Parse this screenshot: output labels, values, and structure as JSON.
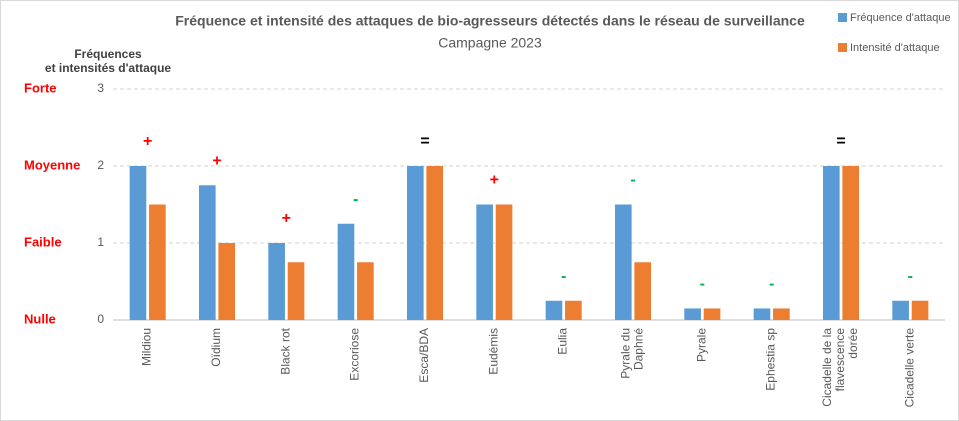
{
  "chart_data": {
    "type": "bar",
    "title": "Fréquence et intensité des attaques de bio-agresseurs détectés dans le réseau de surveillance",
    "subtitle": "Campagne 2023",
    "y_axis_label": [
      "Fréquences",
      "et intensités d'attaque"
    ],
    "level_labels": [
      "Nulle",
      "Faible",
      "Moyenne",
      "Forte"
    ],
    "level_label_color": "#ff0000",
    "categories": [
      [
        "Mildiou"
      ],
      [
        "Oïdium"
      ],
      [
        "Black rot"
      ],
      [
        "Excoriose"
      ],
      [
        "Esca/BDA"
      ],
      [
        "Eudémis"
      ],
      [
        "Eulia"
      ],
      [
        "Pyrale du",
        "Daphné"
      ],
      [
        "Pyrale"
      ],
      [
        "Ephestia sp"
      ],
      [
        "Cicadelle de la",
        "flavescence",
        "dorée"
      ],
      [
        "Cicadelle verte"
      ]
    ],
    "series": [
      {
        "name": "Fréquence d'attaque",
        "color": "#5b9bd5",
        "values": [
          2,
          1.75,
          1,
          1.25,
          2,
          1.5,
          0.25,
          1.5,
          0.15,
          0.15,
          2,
          0.25
        ]
      },
      {
        "name": "Intensité d'attaque",
        "color": "#ed7d31",
        "values": [
          1.5,
          1,
          0.75,
          0.75,
          2,
          1.5,
          0.25,
          0.75,
          0.15,
          0.15,
          2,
          0.25
        ]
      }
    ],
    "annotations": [
      {
        "text": "+",
        "color": "#ff0000"
      },
      {
        "text": "+",
        "color": "#ff0000"
      },
      {
        "text": "+",
        "color": "#ff0000"
      },
      {
        "text": "-",
        "color": "#00b050"
      },
      {
        "text": "=",
        "color": "#000000"
      },
      {
        "text": "+",
        "color": "#ff0000"
      },
      {
        "text": "-",
        "color": "#00b050"
      },
      {
        "text": "-",
        "color": "#00b050"
      },
      {
        "text": "-",
        "color": "#00b050"
      },
      {
        "text": "-",
        "color": "#00b050"
      },
      {
        "text": "=",
        "color": "#000000"
      },
      {
        "text": "-",
        "color": "#00b050"
      }
    ],
    "ylim": [
      0,
      3
    ],
    "yticks": [
      0,
      1,
      2,
      3
    ],
    "grid": true,
    "legend": "top-right"
  }
}
